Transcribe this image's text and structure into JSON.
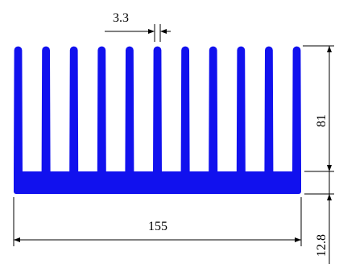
{
  "colors": {
    "profile_fill": "#1111ee",
    "line": "#000000",
    "background": "#ffffff"
  },
  "heatsink": {
    "fin_count": 11
  },
  "dimensions": {
    "fin_gap": "3.3",
    "total_height": "81",
    "overall_width": "155",
    "base_thickness": "12.8"
  }
}
